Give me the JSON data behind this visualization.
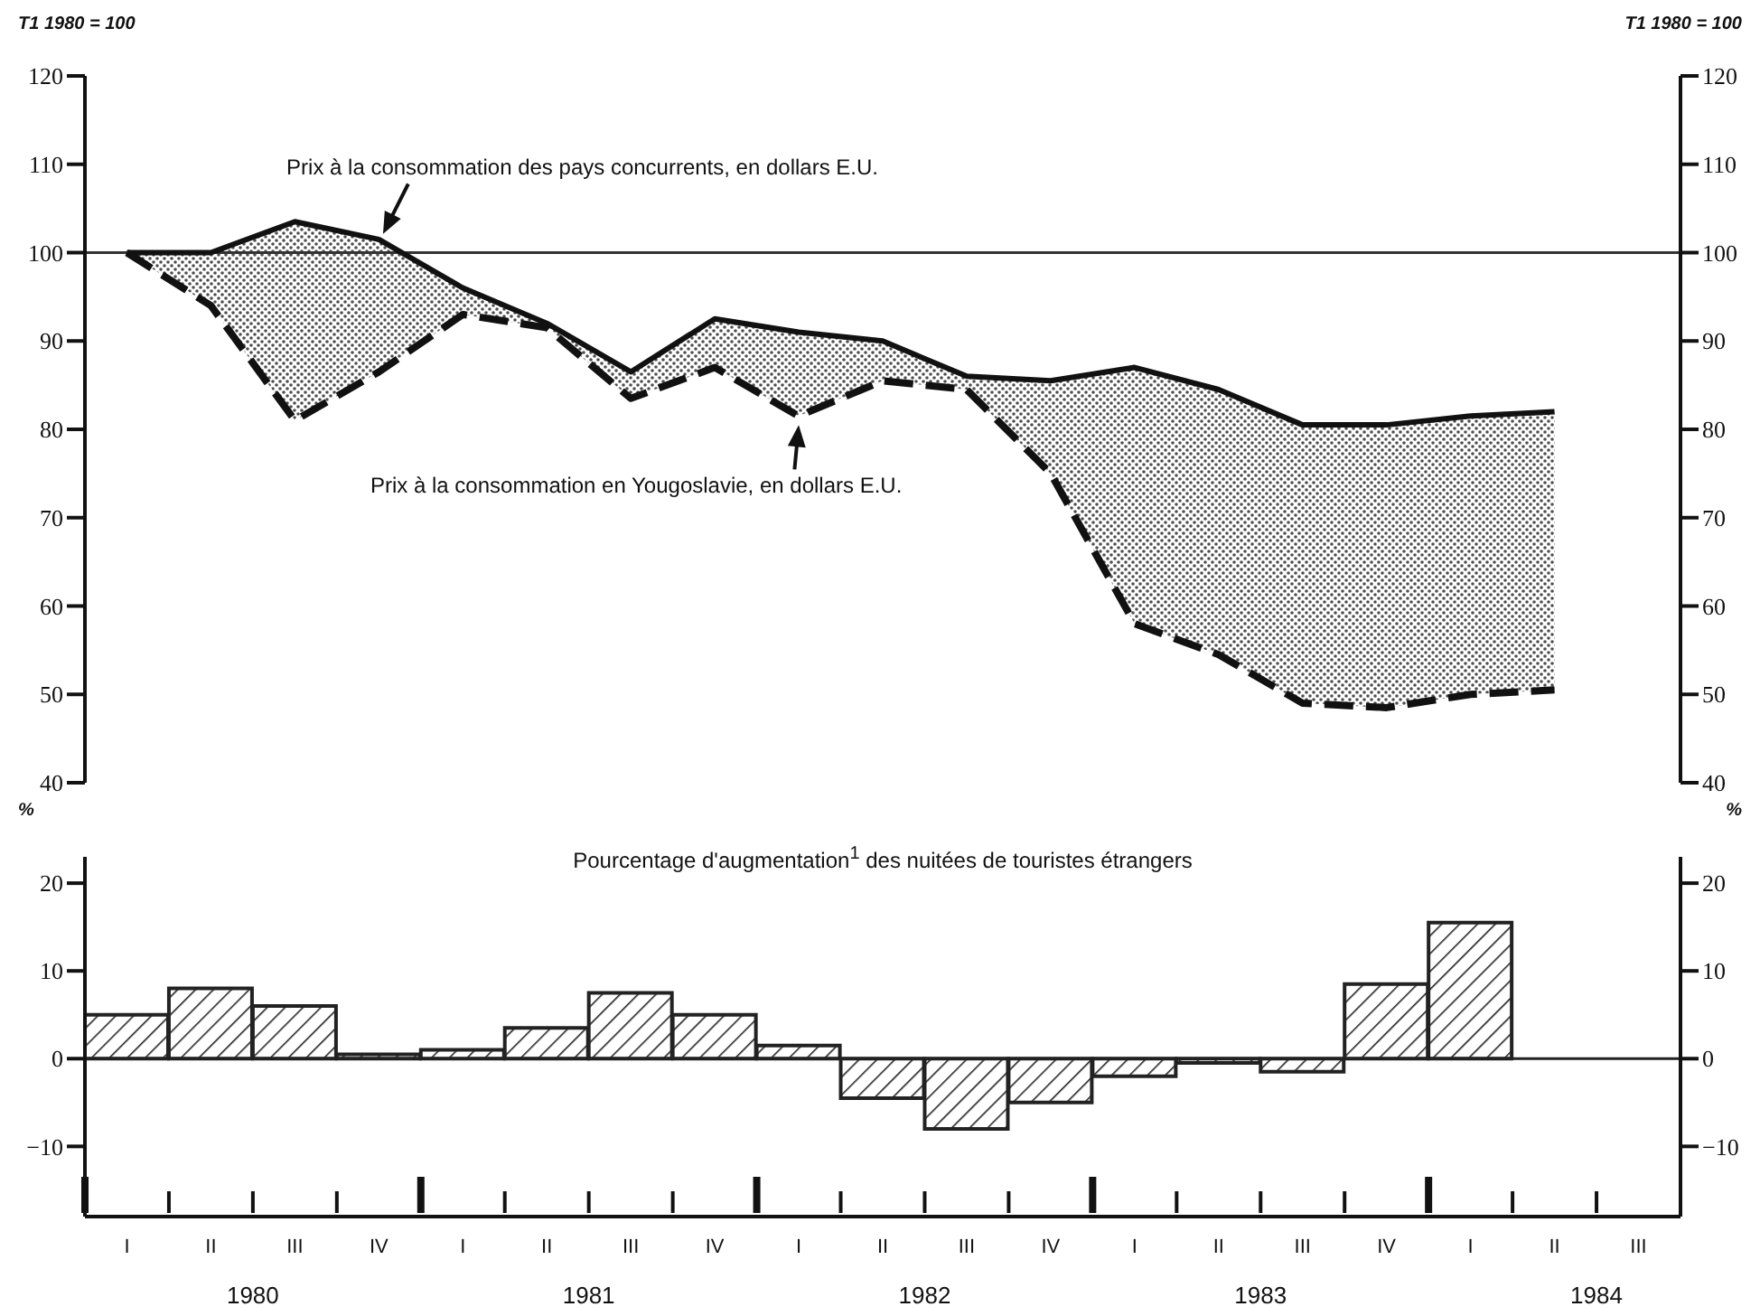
{
  "chart_data": [
    {
      "type": "line",
      "ylabel": "T1 1980 = 100",
      "y2label": "T1 1980 = 100",
      "categories": [
        null,
        null,
        null,
        null,
        null,
        null,
        null,
        null,
        null,
        null,
        null,
        null,
        null,
        null,
        null,
        null,
        null,
        null
      ],
      "series": [
        {
          "name": "Prix à la consommation des pays concurrents, en dollars E.U.",
          "color": "#111111",
          "line_style": "solid",
          "values": [
            100,
            100,
            103.5,
            101.5,
            96,
            92,
            86.5,
            92.5,
            91,
            90,
            86,
            85.5,
            87,
            84.5,
            80.5,
            80.5,
            81.5,
            82
          ],
          "lower": [
            100,
            94,
            81,
            86.5,
            93,
            91.5,
            83.5,
            87,
            81.5,
            85.5,
            84.5,
            75,
            58,
            54.5,
            49,
            48.5,
            50,
            50.5
          ],
          "upper": [
            100,
            100,
            103.5,
            101.5,
            96,
            92,
            86.5,
            92.5,
            91,
            90,
            86,
            85.5,
            87,
            84.5,
            80.5,
            80.5,
            81.5,
            82
          ]
        },
        {
          "name": "Prix à la consommation en Yougoslavie, en dollars E.U.",
          "color": "#111111",
          "line_style": "dashed",
          "values": [
            100,
            94,
            81,
            86.5,
            93,
            91.5,
            83.5,
            87,
            81.5,
            85.5,
            84.5,
            75,
            58,
            54.5,
            49,
            48.5,
            50,
            50.5
          ]
        }
      ],
      "ylim": [
        40,
        120
      ],
      "yticks": [
        40,
        50,
        60,
        70,
        80,
        90,
        100,
        110,
        120
      ],
      "y2lim": [
        40,
        120
      ],
      "y2ticks": [
        40,
        50,
        60,
        70,
        80,
        90,
        100,
        110,
        120
      ],
      "ref_lines": [
        {
          "axis": "y",
          "value": 100,
          "color": "#333333"
        }
      ],
      "tick_labels": "y"
    },
    {
      "type": "bar",
      "title": "Pourcentage d'augmentation$^{1}$ des nuitées de touristes étrangers",
      "ylabel": "%",
      "y2label": "%",
      "categories": [
        "I",
        "II",
        "III",
        "IV",
        "I",
        "II",
        "III",
        "IV",
        "I",
        "II",
        "III",
        "IV",
        "I",
        "II",
        "III",
        "IV",
        "I",
        "II",
        "III"
      ],
      "series": [
        {
          "color": "#222222",
          "values": [
            5,
            8,
            6,
            0.5,
            1,
            3.5,
            7.5,
            5,
            1.5,
            -4.5,
            -8,
            -5,
            -2,
            -0.5,
            -1.5,
            8.5,
            15.5,
            null,
            null
          ]
        }
      ],
      "ylim": [
        -18,
        23
      ],
      "yticks": [
        -10,
        0,
        10,
        20
      ],
      "y2lim": [
        -18,
        23
      ],
      "y2ticks": [
        -10,
        0,
        10,
        20
      ],
      "ref_lines": [
        {
          "axis": "y",
          "value": 0,
          "color": "#222222"
        }
      ],
      "annotations": [
        "1980",
        "1981",
        "1982",
        "1983",
        "1984"
      ]
    }
  ]
}
